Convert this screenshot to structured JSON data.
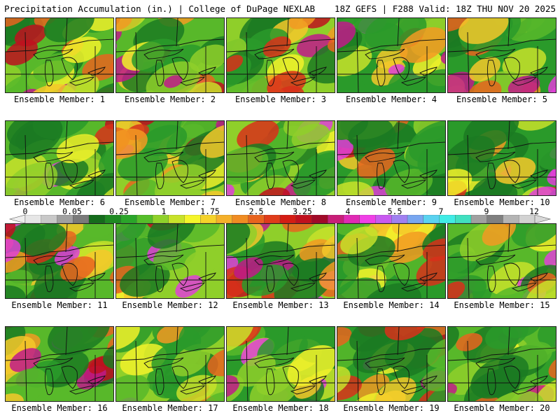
{
  "header": {
    "title_left": "Precipitation Accumulation (in.) | College of DuPage NEXLAB",
    "title_right": "18Z GEFS | F288 Valid: 18Z THU NOV 20 2025"
  },
  "colorbar": {
    "labels": [
      "0",
      "0.05",
      "0.25",
      "1",
      "1.75",
      "2.5",
      "3.25",
      "4",
      "5.5",
      "7",
      "9",
      "12"
    ],
    "colors": [
      "#e6e6e6",
      "#c8c8c8",
      "#a0a0a0",
      "#7a7a7a",
      "#156c1c",
      "#1e8a22",
      "#2aa52a",
      "#55be2a",
      "#8fd12a",
      "#c8e22a",
      "#f5f52a",
      "#f5d22a",
      "#f5b02a",
      "#f08c22",
      "#e8641e",
      "#e03c1a",
      "#d41c14",
      "#c0101e",
      "#a00a28",
      "#c81e78",
      "#e02ab4",
      "#f040e6",
      "#c85af0",
      "#9f80f0",
      "#78a6f0",
      "#5ad2f0",
      "#40ece6",
      "#40e0c0",
      "#a0a0a0",
      "#808080",
      "#b4b4b4",
      "#d2d2d2"
    ]
  },
  "members": [
    {
      "label": "Ensemble Member: 1"
    },
    {
      "label": "Ensemble Member: 2"
    },
    {
      "label": "Ensemble Member: 3"
    },
    {
      "label": "Ensemble Member: 4"
    },
    {
      "label": "Ensemble Member: 5"
    },
    {
      "label": "Ensemble Member: 6"
    },
    {
      "label": "Ensemble Member: 7"
    },
    {
      "label": "Ensemble Member: 8"
    },
    {
      "label": "Ensemble Member: 9"
    },
    {
      "label": "Ensemble Member: 10"
    },
    {
      "label": "Ensemble Member: 11"
    },
    {
      "label": "Ensemble Member: 12"
    },
    {
      "label": "Ensemble Member: 13"
    },
    {
      "label": "Ensemble Member: 14"
    },
    {
      "label": "Ensemble Member: 15"
    },
    {
      "label": "Ensemble Member: 16"
    },
    {
      "label": "Ensemble Member: 17"
    },
    {
      "label": "Ensemble Member: 18"
    },
    {
      "label": "Ensemble Member: 19"
    },
    {
      "label": "Ensemble Member: 20"
    }
  ]
}
